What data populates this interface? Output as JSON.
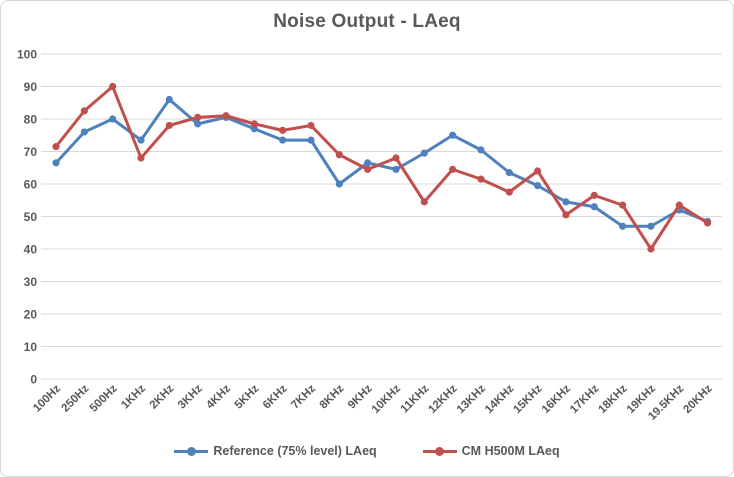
{
  "chart_data": {
    "type": "line",
    "title": "Noise Output - LAeq",
    "xlabel": "",
    "ylabel": "",
    "ylim": [
      0,
      100
    ],
    "ytick_step": 10,
    "grid": "horizontal",
    "legend_position": "bottom",
    "text_color": "#595959",
    "gridline_color": "#d9d9d9",
    "categories": [
      "100Hz",
      "250Hz",
      "500Hz",
      "1KHz",
      "2KHz",
      "3KHz",
      "4KHz",
      "5KHz",
      "6KHz",
      "7KHz",
      "8KHz",
      "9KHz",
      "10KHz",
      "11KHz",
      "12KHz",
      "13KHz",
      "14KHz",
      "15KHz",
      "16KHz",
      "17KHz",
      "18KHz",
      "19KHz",
      "19.5KHz",
      "20KHz"
    ],
    "series": [
      {
        "name": "Reference (75% level) LAeq",
        "color": "#4F81BD",
        "values": [
          66.5,
          76,
          80,
          73.5,
          86,
          78.5,
          80.5,
          77,
          73.5,
          73.5,
          60,
          66.5,
          64.5,
          69.5,
          75,
          70.5,
          63.5,
          59.5,
          54.5,
          53,
          47,
          47,
          52,
          48.5
        ]
      },
      {
        "name": "CM H500M LAeq",
        "color": "#C0504D",
        "values": [
          71.5,
          82.5,
          90,
          68,
          78,
          80.5,
          81,
          78.5,
          76.5,
          78,
          69,
          64.5,
          68,
          54.5,
          64.5,
          61.5,
          57.5,
          64,
          50.5,
          56.5,
          53.5,
          40,
          53.5,
          48
        ]
      }
    ]
  }
}
